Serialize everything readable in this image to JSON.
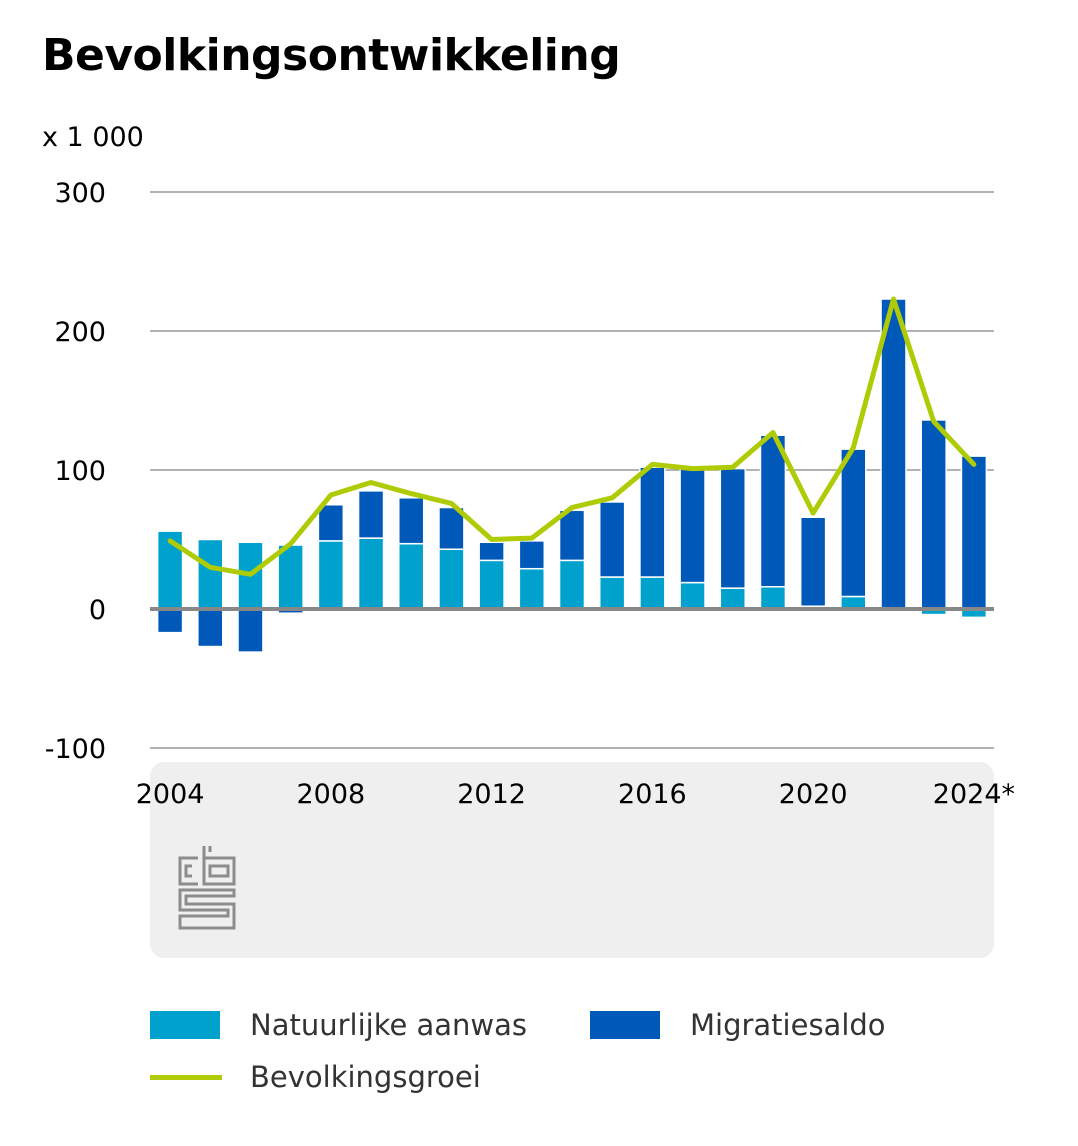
{
  "chart_data": {
    "type": "bar",
    "title": "Bevolkingsontwikkeling",
    "ylabel": "x 1 000",
    "xlabel": "",
    "ylim": [
      -100,
      300
    ],
    "yticks": [
      300,
      200,
      100,
      0,
      -100
    ],
    "ytick_labels": [
      "300",
      "200",
      "100",
      "0",
      "-100"
    ],
    "xtick_labels": [
      "2004",
      "2008",
      "2012",
      "2016",
      "2020",
      "2024*"
    ],
    "xtick_years": [
      2004,
      2008,
      2012,
      2016,
      2020,
      2024
    ],
    "x": [
      2004,
      2005,
      2006,
      2007,
      2008,
      2009,
      2010,
      2011,
      2012,
      2013,
      2014,
      2015,
      2016,
      2017,
      2018,
      2019,
      2020,
      2021,
      2022,
      2023,
      2024
    ],
    "stacked": true,
    "grid": true,
    "legend_position": "bottom",
    "series": [
      {
        "name": "Natuurlijke aanwas",
        "kind": "bar",
        "color": "#00a1cd",
        "values": [
          56,
          50,
          48,
          46,
          49,
          51,
          47,
          43,
          35,
          29,
          35,
          23,
          23,
          19,
          15,
          16,
          2,
          9,
          0,
          -4,
          -6
        ]
      },
      {
        "name": "Migratiesaldo",
        "kind": "bar",
        "color": "#0058b8",
        "values": [
          -17,
          -27,
          -31,
          -3,
          26,
          34,
          33,
          30,
          13,
          20,
          36,
          54,
          79,
          82,
          86,
          109,
          64,
          106,
          223,
          136,
          110
        ]
      },
      {
        "name": "Bevolkingsgroei",
        "kind": "line",
        "color": "#afcb05",
        "values": [
          49,
          30,
          25,
          47,
          82,
          91,
          83,
          76,
          50,
          51,
          73,
          80,
          104,
          101,
          102,
          127,
          69,
          116,
          223,
          135,
          104
        ]
      }
    ]
  }
}
